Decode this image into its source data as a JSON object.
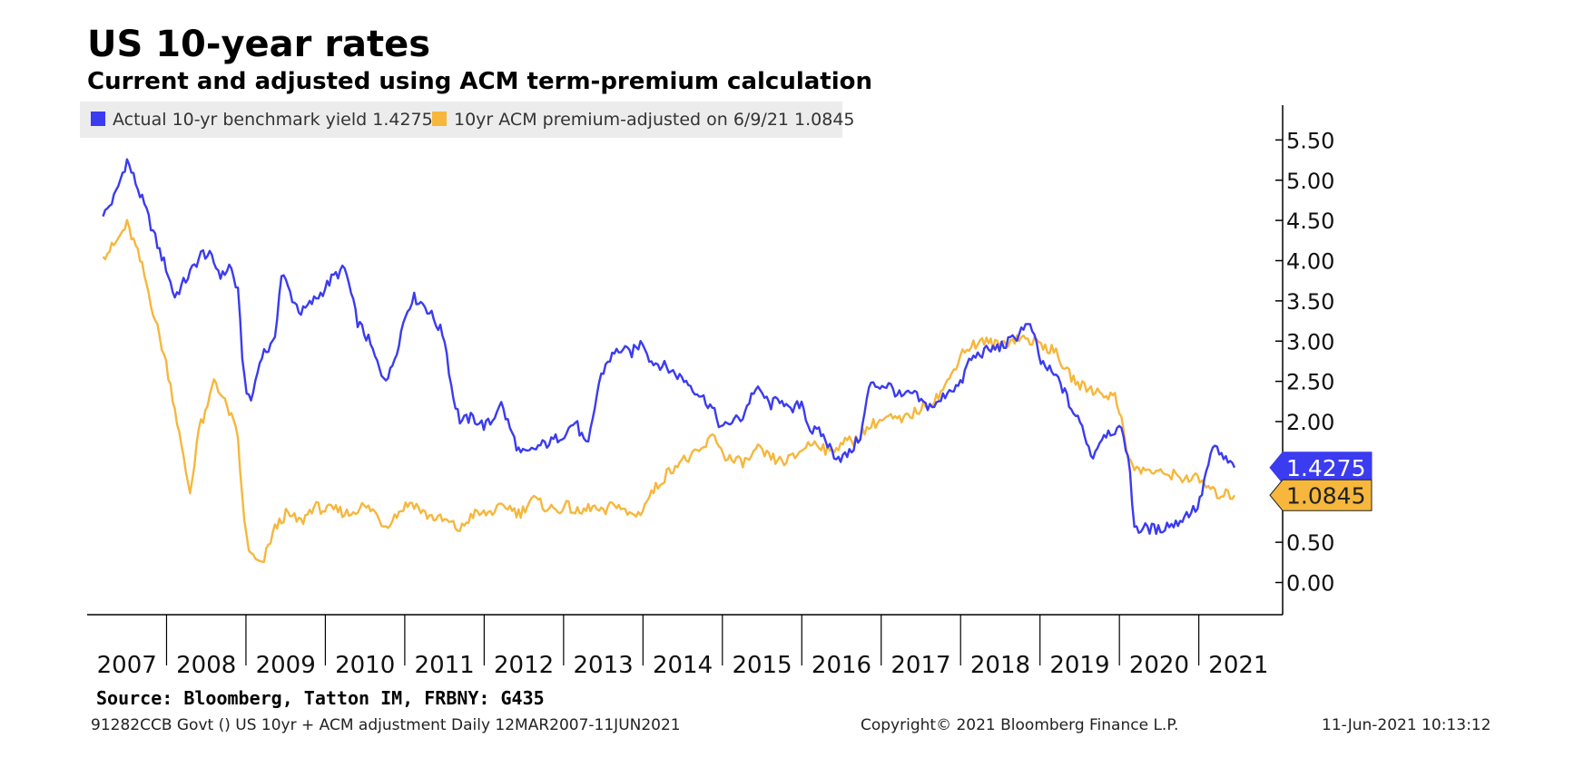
{
  "chart_data": {
    "type": "line",
    "title": "US 10-year rates",
    "subtitle": "Current and adjusted using ACM term-premium calculation",
    "x_start": 2007.2,
    "x_end": 2021.45,
    "xlim": [
      2007.0,
      2021.85
    ],
    "ylim": [
      -0.4,
      6.0
    ],
    "y_ticks": [
      "5.50",
      "5.00",
      "4.50",
      "4.00",
      "3.50",
      "3.00",
      "2.50",
      "2.00",
      "1.50",
      "1.00",
      "0.50",
      "0.00"
    ],
    "x_ticks": [
      "2007",
      "2008",
      "2009",
      "2010",
      "2011",
      "2012",
      "2013",
      "2014",
      "2015",
      "2016",
      "2017",
      "2018",
      "2019",
      "2020",
      "2021"
    ],
    "y_axis_position": "right",
    "grid": false,
    "legend_position": "top-left",
    "series": [
      {
        "name": "Actual 10-yr benchmark yield",
        "last_value": "1.4275",
        "color": "#3b3bf0",
        "x": [
          2007.2,
          2007.35,
          2007.5,
          2007.6,
          2007.75,
          2007.9,
          2008.0,
          2008.1,
          2008.2,
          2008.3,
          2008.45,
          2008.55,
          2008.7,
          2008.8,
          2008.9,
          2008.97,
          2009.05,
          2009.2,
          2009.35,
          2009.45,
          2009.6,
          2009.7,
          2009.85,
          2009.95,
          2010.1,
          2010.25,
          2010.4,
          2010.55,
          2010.7,
          2010.8,
          2010.9,
          2011.0,
          2011.1,
          2011.25,
          2011.35,
          2011.5,
          2011.6,
          2011.7,
          2011.85,
          2012.0,
          2012.1,
          2012.2,
          2012.35,
          2012.45,
          2012.55,
          2012.7,
          2012.85,
          2013.0,
          2013.15,
          2013.3,
          2013.45,
          2013.55,
          2013.7,
          2013.85,
          2014.0,
          2014.1,
          2014.25,
          2014.4,
          2014.55,
          2014.7,
          2014.85,
          2015.0,
          2015.1,
          2015.25,
          2015.4,
          2015.5,
          2015.6,
          2015.75,
          2015.85,
          2016.0,
          2016.1,
          2016.25,
          2016.4,
          2016.5,
          2016.6,
          2016.75,
          2016.85,
          2016.95,
          2017.1,
          2017.25,
          2017.4,
          2017.55,
          2017.7,
          2017.85,
          2018.0,
          2018.1,
          2018.25,
          2018.4,
          2018.55,
          2018.7,
          2018.8,
          2018.9,
          2019.0,
          2019.1,
          2019.25,
          2019.4,
          2019.55,
          2019.65,
          2019.8,
          2019.95,
          2020.05,
          2020.12,
          2020.18,
          2020.25,
          2020.35,
          2020.5,
          2020.6,
          2020.7,
          2020.85,
          2021.0,
          2021.1,
          2021.2,
          2021.3,
          2021.45
        ],
        "y": [
          4.55,
          4.8,
          5.25,
          5.0,
          4.6,
          4.15,
          3.9,
          3.55,
          3.7,
          3.85,
          4.1,
          4.05,
          3.8,
          3.95,
          3.6,
          2.6,
          2.2,
          2.85,
          2.95,
          3.85,
          3.5,
          3.35,
          3.5,
          3.6,
          3.8,
          3.9,
          3.25,
          3.0,
          2.6,
          2.55,
          2.9,
          3.3,
          3.55,
          3.45,
          3.3,
          3.05,
          2.35,
          2.0,
          2.05,
          1.95,
          2.0,
          2.25,
          1.85,
          1.6,
          1.6,
          1.7,
          1.75,
          1.85,
          2.0,
          1.65,
          2.5,
          2.75,
          2.9,
          2.85,
          3.0,
          2.75,
          2.7,
          2.6,
          2.5,
          2.35,
          2.2,
          1.9,
          2.0,
          2.05,
          2.4,
          2.35,
          2.2,
          2.3,
          2.1,
          2.25,
          1.9,
          1.85,
          1.6,
          1.55,
          1.6,
          1.85,
          2.45,
          2.45,
          2.45,
          2.3,
          2.35,
          2.2,
          2.2,
          2.4,
          2.45,
          2.75,
          2.85,
          2.9,
          2.95,
          3.05,
          3.2,
          3.15,
          2.75,
          2.65,
          2.5,
          2.15,
          1.9,
          1.55,
          1.85,
          1.9,
          1.85,
          1.5,
          0.75,
          0.65,
          0.68,
          0.65,
          0.72,
          0.72,
          0.85,
          0.95,
          1.4,
          1.7,
          1.55,
          1.4275
        ]
      },
      {
        "name": "10yr ACM premium-adjusted on 6/9/21",
        "last_value": "1.0845",
        "color": "#f6b73c",
        "x": [
          2007.2,
          2007.35,
          2007.5,
          2007.6,
          2007.7,
          2007.8,
          2007.9,
          2008.0,
          2008.1,
          2008.2,
          2008.3,
          2008.4,
          2008.5,
          2008.6,
          2008.7,
          2008.8,
          2008.9,
          2008.97,
          2009.05,
          2009.2,
          2009.35,
          2009.5,
          2009.7,
          2009.85,
          2010.0,
          2010.15,
          2010.3,
          2010.45,
          2010.6,
          2010.75,
          2010.85,
          2011.0,
          2011.1,
          2011.25,
          2011.4,
          2011.55,
          2011.7,
          2011.85,
          2012.0,
          2012.15,
          2012.3,
          2012.45,
          2012.6,
          2012.75,
          2012.9,
          2013.05,
          2013.2,
          2013.35,
          2013.5,
          2013.65,
          2013.8,
          2013.95,
          2014.1,
          2014.3,
          2014.45,
          2014.6,
          2014.75,
          2014.9,
          2015.0,
          2015.15,
          2015.3,
          2015.45,
          2015.6,
          2015.75,
          2015.9,
          2016.05,
          2016.2,
          2016.35,
          2016.5,
          2016.65,
          2016.8,
          2016.95,
          2017.1,
          2017.25,
          2017.4,
          2017.55,
          2017.7,
          2017.85,
          2018.0,
          2018.15,
          2018.3,
          2018.45,
          2018.6,
          2018.75,
          2018.9,
          2019.05,
          2019.2,
          2019.35,
          2019.5,
          2019.65,
          2019.8,
          2019.95,
          2020.05,
          2020.12,
          2020.2,
          2020.35,
          2020.5,
          2020.65,
          2020.8,
          2020.95,
          2021.1,
          2021.2,
          2021.3,
          2021.45
        ],
        "y": [
          4.05,
          4.2,
          4.45,
          4.2,
          3.9,
          3.5,
          3.1,
          2.7,
          2.2,
          1.6,
          1.1,
          1.9,
          2.1,
          2.55,
          2.3,
          2.1,
          1.8,
          0.8,
          0.35,
          0.2,
          0.65,
          0.85,
          0.75,
          0.95,
          0.9,
          0.9,
          0.85,
          0.95,
          0.9,
          0.7,
          0.8,
          0.95,
          1.0,
          0.85,
          0.8,
          0.75,
          0.65,
          0.85,
          0.85,
          0.9,
          0.95,
          0.85,
          1.05,
          0.95,
          0.9,
          0.95,
          0.85,
          0.95,
          0.85,
          1.0,
          0.85,
          0.85,
          1.1,
          1.35,
          1.5,
          1.55,
          1.65,
          1.85,
          1.6,
          1.5,
          1.5,
          1.65,
          1.55,
          1.5,
          1.55,
          1.7,
          1.75,
          1.6,
          1.75,
          1.75,
          1.9,
          2.0,
          2.05,
          2.0,
          2.1,
          2.2,
          2.3,
          2.5,
          2.85,
          2.95,
          3.0,
          2.95,
          3.0,
          3.05,
          3.0,
          2.95,
          2.85,
          2.6,
          2.45,
          2.4,
          2.35,
          2.3,
          1.95,
          1.5,
          1.4,
          1.4,
          1.35,
          1.35,
          1.3,
          1.3,
          1.2,
          1.1,
          1.1,
          1.0845
        ]
      }
    ]
  },
  "source": "Source: Bloomberg, Tatton IM, FRBNY: G435",
  "footer": {
    "left": "91282CCB Govt () US 10yr + ACM adjustment  Daily 12MAR2007-11JUN2021",
    "middle": "Copyright© 2021 Bloomberg Finance L.P.",
    "right": "11-Jun-2021 10:13:12"
  }
}
